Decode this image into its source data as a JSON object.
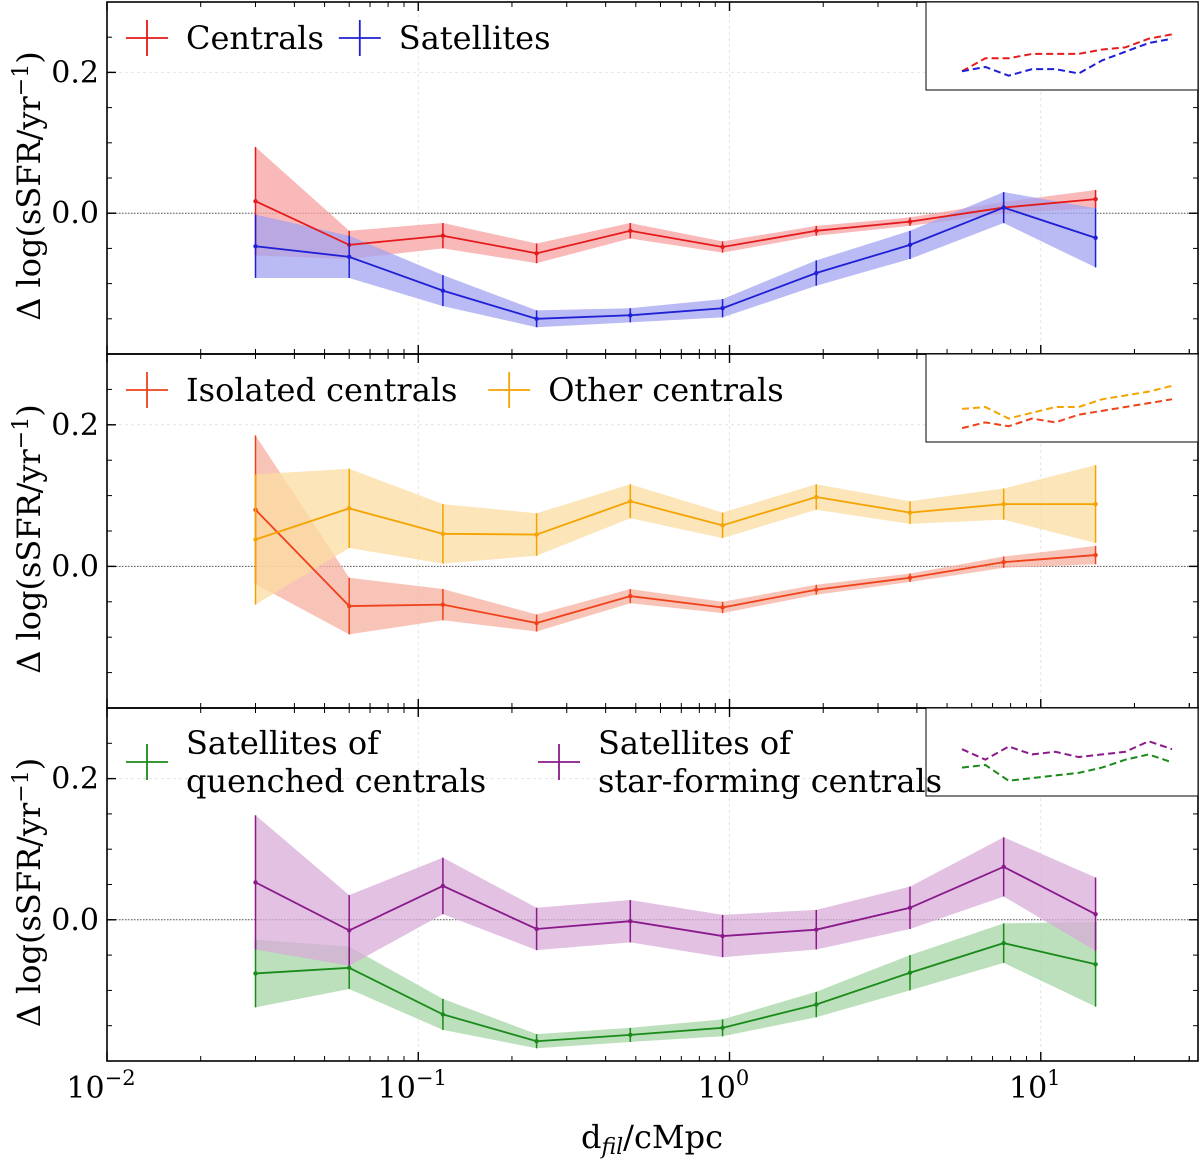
{
  "figure": {
    "xlabel_main": "d",
    "xlabel_sub": "fil",
    "xlabel_unit": "/cMpc",
    "ylabel_prefix": "Δ log(sSFR/yr",
    "ylabel_exp": "−1",
    "ylabel_suffix": ")"
  },
  "chart_data": [
    {
      "type": "line",
      "panel": "top",
      "xscale": "log",
      "xlim": [
        0.01,
        32
      ],
      "ylim": [
        -0.2,
        0.3
      ],
      "yticks": [
        "0.0",
        "0.2"
      ],
      "ytick_values": [
        0.0,
        0.2
      ],
      "xticks": [
        "10",
        "10",
        "10",
        "10"
      ],
      "xtick_exps": [
        "−2",
        "−1",
        "0",
        "1"
      ],
      "xtick_values": [
        0.01,
        0.1,
        1,
        10
      ],
      "x": [
        0.03,
        0.06,
        0.12,
        0.24,
        0.48,
        0.95,
        1.9,
        3.8,
        7.6,
        15
      ],
      "series": [
        {
          "name": "Centrals",
          "color": "#e41a1c",
          "fill": "#f7a1a1",
          "values": [
            0.017,
            -0.045,
            -0.032,
            -0.057,
            -0.025,
            -0.048,
            -0.025,
            -0.012,
            0.008,
            0.02
          ],
          "errors": [
            0.077,
            0.02,
            0.018,
            0.014,
            0.011,
            0.008,
            0.007,
            0.006,
            0.008,
            0.013
          ]
        },
        {
          "name": "Satellites",
          "color": "#1f1fd6",
          "fill": "#a3a3f0",
          "values": [
            -0.047,
            -0.062,
            -0.11,
            -0.15,
            -0.145,
            -0.135,
            -0.085,
            -0.045,
            0.008,
            -0.035
          ],
          "errors": [
            0.045,
            0.03,
            0.022,
            0.012,
            0.01,
            0.013,
            0.018,
            0.02,
            0.022,
            0.042
          ]
        }
      ],
      "inset_lines": [
        {
          "color": "#e41a1c",
          "values": [
            0.0,
            0.06,
            0.06,
            0.08,
            0.08,
            0.08,
            0.1,
            0.11,
            0.15,
            0.17
          ]
        },
        {
          "color": "#1f1fd6",
          "values": [
            0.0,
            0.02,
            -0.02,
            0.01,
            0.01,
            -0.01,
            0.05,
            0.09,
            0.13,
            0.15
          ]
        }
      ]
    },
    {
      "type": "line",
      "panel": "middle",
      "xscale": "log",
      "xlim": [
        0.01,
        32
      ],
      "ylim": [
        -0.2,
        0.3
      ],
      "yticks": [
        "0.0",
        "0.2"
      ],
      "ytick_values": [
        0.0,
        0.2
      ],
      "x": [
        0.03,
        0.06,
        0.12,
        0.24,
        0.48,
        0.95,
        1.9,
        3.8,
        7.6,
        15
      ],
      "series": [
        {
          "name": "Isolated centrals",
          "color": "#f0421a",
          "fill": "#f7b0a0",
          "values": [
            0.08,
            -0.056,
            -0.054,
            -0.08,
            -0.042,
            -0.058,
            -0.033,
            -0.016,
            0.006,
            0.016
          ],
          "errors": [
            0.105,
            0.04,
            0.022,
            0.012,
            0.01,
            0.008,
            0.007,
            0.006,
            0.008,
            0.013
          ]
        },
        {
          "name": "Other centrals",
          "color": "#f5a300",
          "fill": "#fbdca0",
          "values": [
            0.038,
            0.082,
            0.046,
            0.045,
            0.092,
            0.058,
            0.098,
            0.076,
            0.088,
            0.088
          ],
          "errors": [
            0.092,
            0.056,
            0.042,
            0.03,
            0.024,
            0.018,
            0.018,
            0.016,
            0.022,
            0.055
          ]
        }
      ],
      "inset_lines": [
        {
          "color": "#f5a300",
          "values": [
            0.05,
            0.06,
            0.0,
            0.03,
            0.06,
            0.06,
            0.1,
            0.12,
            0.14,
            0.17
          ]
        },
        {
          "color": "#f0421a",
          "values": [
            -0.05,
            -0.02,
            -0.04,
            0.0,
            -0.02,
            0.02,
            0.04,
            0.06,
            0.08,
            0.1
          ]
        }
      ]
    },
    {
      "type": "line",
      "panel": "bottom",
      "xscale": "log",
      "xlim": [
        0.01,
        32
      ],
      "ylim": [
        -0.2,
        0.3
      ],
      "yticks": [
        "0.0",
        "0.2"
      ],
      "ytick_values": [
        0.0,
        0.2
      ],
      "x": [
        0.03,
        0.06,
        0.12,
        0.24,
        0.48,
        0.95,
        1.9,
        3.8,
        7.6,
        15
      ],
      "series": [
        {
          "name": "Satellites of quenched centrals",
          "legend_lines": [
            "Satellites of",
            "quenched centrals"
          ],
          "color": "#1a8a1a",
          "fill": "#a6d6a6",
          "values": [
            -0.076,
            -0.068,
            -0.134,
            -0.172,
            -0.163,
            -0.153,
            -0.12,
            -0.075,
            -0.033,
            -0.063
          ],
          "errors": [
            0.048,
            0.03,
            0.022,
            0.01,
            0.01,
            0.012,
            0.018,
            0.025,
            0.028,
            0.06
          ]
        },
        {
          "name": "Satellites of star-forming centrals",
          "legend_lines": [
            "Satellites of",
            "star-forming centrals"
          ],
          "color": "#8a1a8a",
          "fill": "#d8acd8",
          "values": [
            0.053,
            -0.015,
            0.048,
            -0.013,
            -0.002,
            -0.023,
            -0.014,
            0.017,
            0.075,
            0.008
          ],
          "errors": [
            0.095,
            0.05,
            0.04,
            0.03,
            0.03,
            0.03,
            0.028,
            0.03,
            0.042,
            0.052
          ]
        }
      ],
      "inset_lines": [
        {
          "color": "#8a1a8a",
          "values": [
            0.12,
            0.08,
            0.13,
            0.1,
            0.11,
            0.09,
            0.1,
            0.11,
            0.15,
            0.12
          ]
        },
        {
          "color": "#1a8a1a",
          "values": [
            0.05,
            0.06,
            0.0,
            0.01,
            0.02,
            0.03,
            0.05,
            0.08,
            0.1,
            0.07
          ]
        }
      ]
    }
  ]
}
